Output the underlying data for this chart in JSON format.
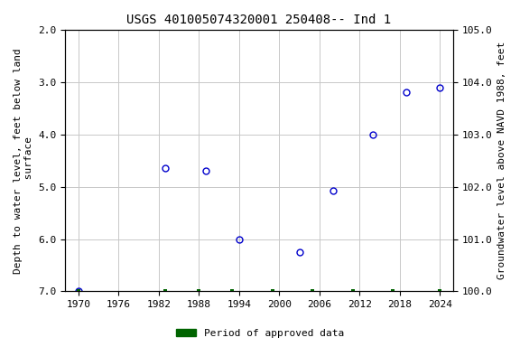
{
  "title": "USGS 401005074320001 250408-- Ind 1",
  "ylabel_left": "Depth to water level, feet below land\n surface",
  "ylabel_right": "Groundwater level above NAVD 1988, feet",
  "xlim": [
    1968,
    2026
  ],
  "ylim_left": [
    7.0,
    2.0
  ],
  "ylim_right": [
    100.0,
    105.0
  ],
  "xticks": [
    1970,
    1976,
    1982,
    1988,
    1994,
    2000,
    2006,
    2012,
    2018,
    2024
  ],
  "yticks_left": [
    2.0,
    3.0,
    4.0,
    5.0,
    6.0,
    7.0
  ],
  "yticks_right": [
    105.0,
    104.0,
    103.0,
    102.0,
    101.0,
    100.0
  ],
  "data_x": [
    1970,
    1983,
    1989,
    1994,
    2003,
    2008,
    2014,
    2019,
    2024
  ],
  "data_y": [
    7.0,
    4.65,
    4.7,
    6.0,
    6.25,
    5.08,
    4.0,
    3.2,
    3.1
  ],
  "green_bar_x": [
    1970,
    1983,
    1988,
    1993,
    1999,
    2005,
    2011,
    2017,
    2024
  ],
  "point_color": "#0000cc",
  "point_marker": "o",
  "point_size": 5,
  "point_facecolor": "none",
  "green_color": "#006400",
  "background_color": "#ffffff",
  "grid_color": "#c8c8c8",
  "title_fontsize": 10,
  "label_fontsize": 8,
  "tick_fontsize": 8,
  "legend_label": "Period of approved data"
}
